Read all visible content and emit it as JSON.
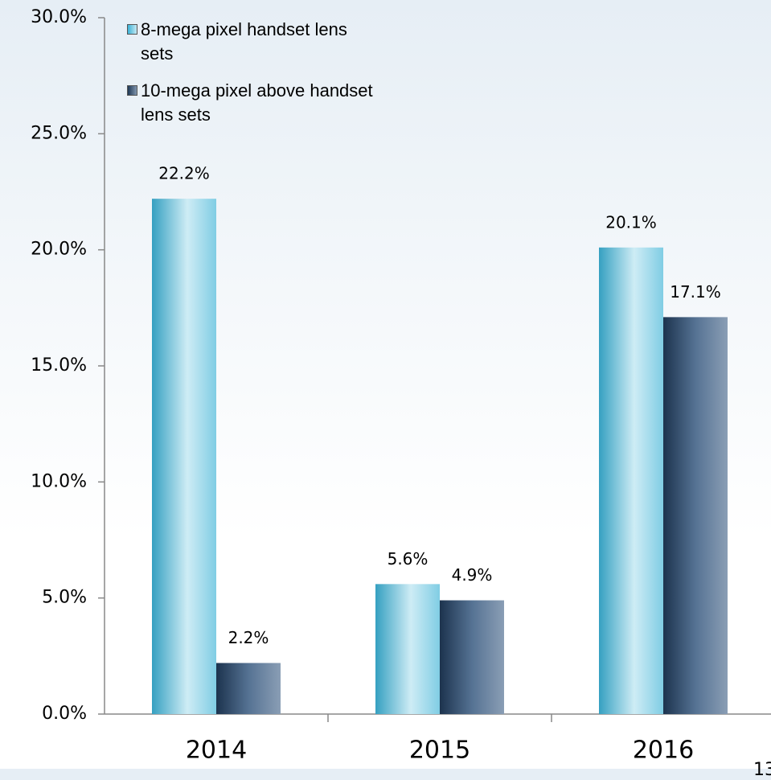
{
  "chart_data": {
    "type": "bar",
    "categories": [
      "2014",
      "2015",
      "2016"
    ],
    "series": [
      {
        "name": "8-mega pixel handset lens sets",
        "color": "#3bb2d6",
        "values": [
          22.2,
          5.6,
          20.1
        ],
        "value_labels": [
          "22.2%",
          "5.6%",
          "20.1%"
        ]
      },
      {
        "name": "10-mega pixel above handset lens sets",
        "color": "#2b4f78",
        "values": [
          2.2,
          4.9,
          17.1
        ],
        "value_labels": [
          "2.2%",
          "4.9%",
          "17.1%"
        ]
      }
    ],
    "ylim": [
      0,
      30
    ],
    "yticks": [
      {
        "value": 0,
        "label": "0.0%"
      },
      {
        "value": 5,
        "label": "5.0%"
      },
      {
        "value": 10,
        "label": "10.0%"
      },
      {
        "value": 15,
        "label": "15.0%"
      },
      {
        "value": 20,
        "label": "20.0%"
      },
      {
        "value": 25,
        "label": "25.0%"
      },
      {
        "value": 30,
        "label": "30.0%"
      }
    ],
    "grid": false,
    "legend": "top-left"
  },
  "page_number": "13"
}
